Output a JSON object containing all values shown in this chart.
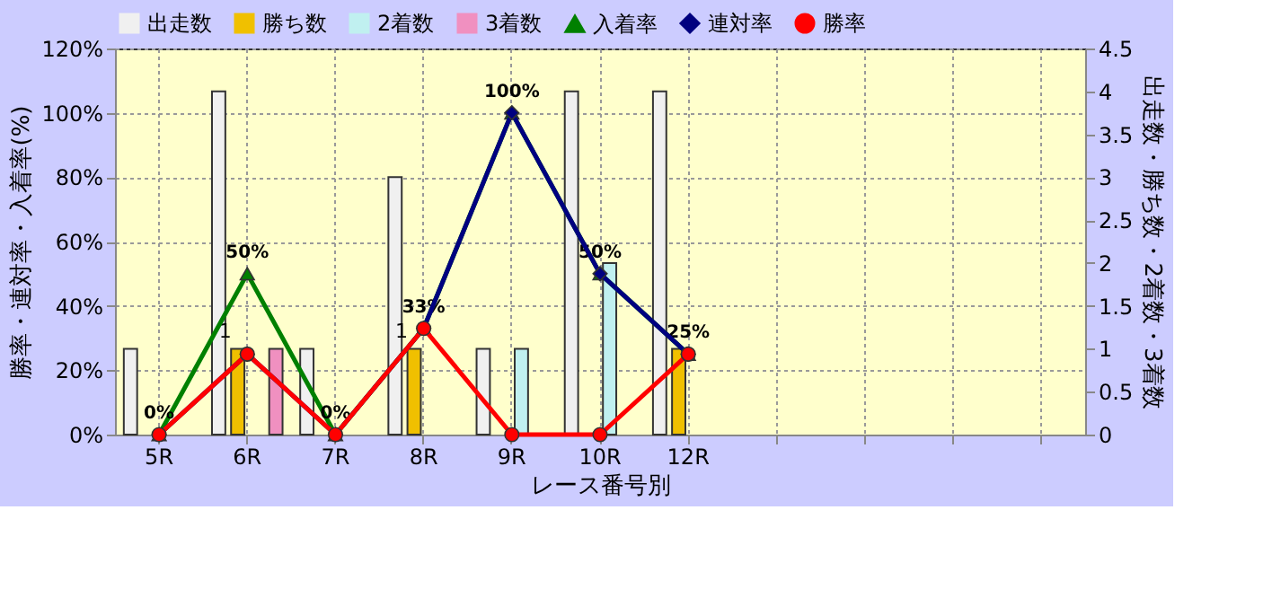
{
  "chart_data": {
    "type": "bar",
    "xlabel": "レース番号別",
    "ylabel": "勝率・連対率・入着率(%)",
    "y2label": "出走数・勝ち数・2着数・3着数",
    "categories": [
      "5R",
      "6R",
      "7R",
      "8R",
      "9R",
      "10R",
      "12R",
      null,
      null,
      null,
      null
    ],
    "series": [
      {
        "name": "出走数",
        "color": "#f0f0f0",
        "axis": "y2",
        "values": [
          1,
          4,
          1,
          3,
          1,
          4,
          4,
          null,
          null,
          null,
          null
        ]
      },
      {
        "name": "勝ち数",
        "color": "#f0c000",
        "axis": "y2",
        "values": [
          0,
          1,
          0,
          1,
          0,
          0,
          1,
          null,
          null,
          null,
          null
        ],
        "value_labels": [
          null,
          "1",
          null,
          "1",
          null,
          null,
          null,
          null,
          null,
          null,
          null
        ]
      },
      {
        "name": "2着数",
        "color": "#c0f0f0",
        "axis": "y2",
        "values": [
          0,
          0,
          0,
          0,
          1,
          2,
          0,
          null,
          null,
          null,
          null
        ]
      },
      {
        "name": "3着数",
        "color": "#f090c0",
        "axis": "y2",
        "values": [
          0,
          1,
          0,
          0,
          0,
          0,
          0,
          null,
          null,
          null,
          null
        ]
      },
      {
        "name": "入着率",
        "type": "line",
        "marker": "triangle",
        "color": "#008000",
        "values": [
          0,
          50,
          0,
          33,
          100,
          50,
          25,
          null,
          null,
          null,
          null
        ],
        "value_labels": [
          "0%",
          "50%",
          "0%",
          "33%",
          "100%",
          "50%",
          "25%",
          null,
          null,
          null,
          null
        ]
      },
      {
        "name": "連対率",
        "type": "line",
        "marker": "diamond",
        "color": "#000080",
        "values": [
          0,
          25,
          0,
          33,
          100,
          50,
          25,
          null,
          null,
          null,
          null
        ]
      },
      {
        "name": "勝率",
        "type": "line",
        "marker": "circle",
        "color": "#ff0000",
        "values": [
          0,
          25,
          0,
          33,
          0,
          0,
          25,
          null,
          null,
          null,
          null
        ]
      }
    ],
    "ylim": [
      0,
      120
    ],
    "yticks": [
      {
        "value": 0,
        "label": "0%"
      },
      {
        "value": 20,
        "label": "20%"
      },
      {
        "value": 40,
        "label": "40%"
      },
      {
        "value": 60,
        "label": "60%"
      },
      {
        "value": 80,
        "label": "80%"
      },
      {
        "value": 100,
        "label": "100%"
      },
      {
        "value": 120,
        "label": "120%"
      }
    ],
    "y2lim": [
      0,
      4.5
    ],
    "y2ticks": [
      0,
      0.5,
      1,
      1.5,
      2,
      2.5,
      3,
      3.5,
      4,
      4.5
    ],
    "grid": true,
    "legend": "top"
  }
}
